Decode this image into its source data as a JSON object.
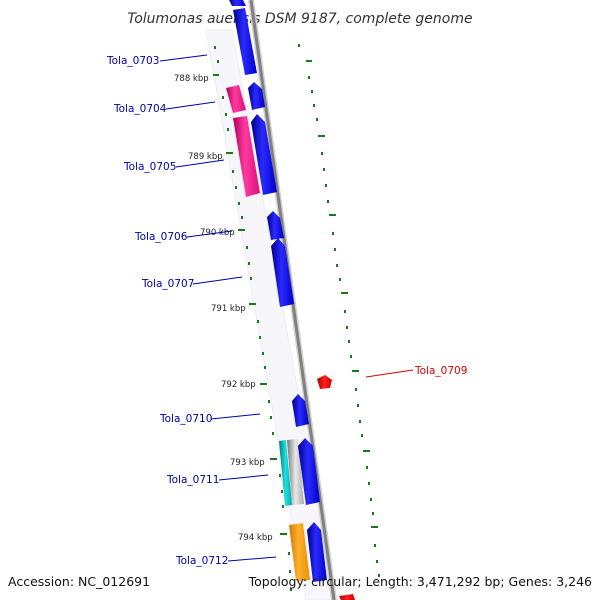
{
  "title": "Tolumonas auensis DSM 9187, complete genome",
  "footer": {
    "accession": "Accession: NC_012691",
    "topology": "Topology: circular; Length: 3,471,292 bp; Genes: 3,246"
  },
  "colors": {
    "label_default": "#0000aa",
    "label_highlight": "#dd0000",
    "forward_gene": "#0000ee",
    "reverse_gene_pink": "#ff1493",
    "reverse_gene_orange": "#ffa500",
    "highlight_gene": "#ff0000",
    "tick": "#1a7a1a",
    "backbone": "#888888"
  },
  "kbp_ticks": [
    "788 kbp",
    "789 kbp",
    "790 kbp",
    "791 kbp",
    "792 kbp",
    "793 kbp",
    "794 kbp"
  ],
  "gene_labels": [
    {
      "id": "Tola_0703",
      "color": "#0000aa"
    },
    {
      "id": "Tola_0704",
      "color": "#0000aa"
    },
    {
      "id": "Tola_0705",
      "color": "#0000aa"
    },
    {
      "id": "Tola_0706",
      "color": "#0000aa"
    },
    {
      "id": "Tola_0707",
      "color": "#0000aa"
    },
    {
      "id": "Tola_0709",
      "color": "#dd0000"
    },
    {
      "id": "Tola_0710",
      "color": "#0000aa"
    },
    {
      "id": "Tola_0711",
      "color": "#0000aa"
    },
    {
      "id": "Tola_0712",
      "color": "#0000aa"
    }
  ]
}
